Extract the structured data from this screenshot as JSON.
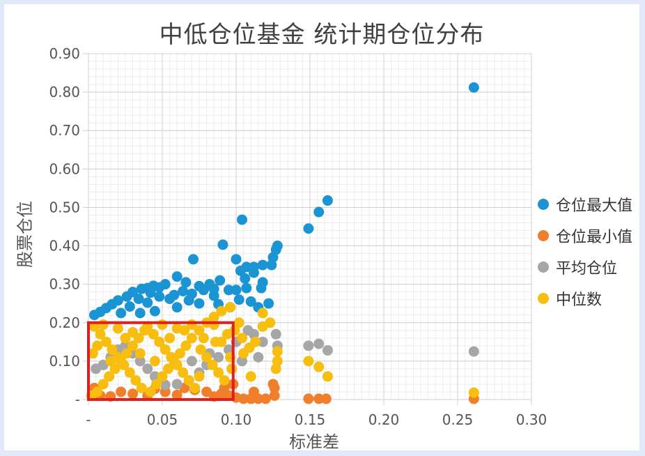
{
  "title": "中低仓位基金  统计期仓位分布",
  "chart_data": {
    "type": "scatter",
    "title": "中低仓位基金  统计期仓位分布",
    "xlabel": "标准差",
    "ylabel": "股票仓位",
    "xlim": [
      0,
      0.3
    ],
    "ylim": [
      0,
      0.9
    ],
    "x_ticks": [
      "-",
      "0.05",
      "0.10",
      "0.15",
      "0.20",
      "0.25",
      "0.30"
    ],
    "y_ticks": [
      "-",
      "0.10",
      "0.20",
      "0.30",
      "0.40",
      "0.50",
      "0.60",
      "0.70",
      "0.80",
      "0.90"
    ],
    "grid": true,
    "legend_position": "right",
    "highlight_box": {
      "x": [
        0,
        0.098
      ],
      "y": [
        0,
        0.2
      ],
      "color": "#e41d1d"
    },
    "series": [
      {
        "name": "仓位最大值",
        "color": "#1a94d2",
        "points": [
          [
            0.261,
            0.812
          ],
          [
            0.162,
            0.518
          ],
          [
            0.156,
            0.488
          ],
          [
            0.149,
            0.445
          ],
          [
            0.128,
            0.4
          ],
          [
            0.127,
            0.39
          ],
          [
            0.125,
            0.37
          ],
          [
            0.124,
            0.35
          ],
          [
            0.118,
            0.35
          ],
          [
            0.112,
            0.345
          ],
          [
            0.107,
            0.345
          ],
          [
            0.103,
            0.335
          ],
          [
            0.106,
            0.315
          ],
          [
            0.112,
            0.33
          ],
          [
            0.118,
            0.305
          ],
          [
            0.117,
            0.29
          ],
          [
            0.107,
            0.29
          ],
          [
            0.1,
            0.285
          ],
          [
            0.104,
            0.468
          ],
          [
            0.091,
            0.403
          ],
          [
            0.1,
            0.365
          ],
          [
            0.071,
            0.365
          ],
          [
            0.089,
            0.31
          ],
          [
            0.082,
            0.3
          ],
          [
            0.075,
            0.295
          ],
          [
            0.066,
            0.305
          ],
          [
            0.06,
            0.32
          ],
          [
            0.052,
            0.3
          ],
          [
            0.048,
            0.292
          ],
          [
            0.044,
            0.296
          ],
          [
            0.04,
            0.29
          ],
          [
            0.036,
            0.288
          ],
          [
            0.03,
            0.28
          ],
          [
            0.026,
            0.268
          ],
          [
            0.02,
            0.258
          ],
          [
            0.016,
            0.248
          ],
          [
            0.012,
            0.238
          ],
          [
            0.008,
            0.228
          ],
          [
            0.004,
            0.22
          ],
          [
            0.028,
            0.242
          ],
          [
            0.04,
            0.252
          ],
          [
            0.055,
            0.262
          ],
          [
            0.07,
            0.275
          ],
          [
            0.085,
            0.27
          ],
          [
            0.095,
            0.285
          ],
          [
            0.102,
            0.26
          ],
          [
            0.11,
            0.255
          ],
          [
            0.122,
            0.25
          ],
          [
            0.115,
            0.24
          ],
          [
            0.06,
            0.24
          ],
          [
            0.045,
            0.23
          ],
          [
            0.035,
            0.225
          ],
          [
            0.022,
            0.225
          ],
          [
            0.075,
            0.25
          ],
          [
            0.088,
            0.248
          ],
          [
            0.096,
            0.24
          ],
          [
            0.064,
            0.282
          ],
          [
            0.058,
            0.272
          ],
          [
            0.048,
            0.268
          ],
          [
            0.034,
            0.262
          ],
          [
            0.078,
            0.285
          ],
          [
            0.068,
            0.258
          ],
          [
            0.085,
            0.288
          ],
          [
            0.042,
            0.278
          ]
        ]
      },
      {
        "name": "仓位最小值",
        "color": "#f07f2b",
        "points": [
          [
            0.261,
            0.002
          ],
          [
            0.161,
            0.002
          ],
          [
            0.156,
            0.002
          ],
          [
            0.149,
            0.002
          ],
          [
            0.126,
            0.01
          ],
          [
            0.126,
            0.03
          ],
          [
            0.125,
            0.04
          ],
          [
            0.12,
            0.002
          ],
          [
            0.115,
            0.002
          ],
          [
            0.11,
            0.002
          ],
          [
            0.105,
            0.002
          ],
          [
            0.1,
            0.005
          ],
          [
            0.095,
            0.01
          ],
          [
            0.09,
            0.015
          ],
          [
            0.085,
            0.008
          ],
          [
            0.08,
            0.02
          ],
          [
            0.072,
            0.025
          ],
          [
            0.065,
            0.03
          ],
          [
            0.06,
            0.012
          ],
          [
            0.052,
            0.02
          ],
          [
            0.045,
            0.028
          ],
          [
            0.04,
            0.01
          ],
          [
            0.03,
            0.015
          ],
          [
            0.022,
            0.02
          ],
          [
            0.015,
            0.008
          ],
          [
            0.008,
            0.01
          ],
          [
            0.004,
            0.03
          ],
          [
            0.098,
            0.04
          ],
          [
            0.112,
            0.02
          ],
          [
            0.092,
            0.03
          ]
        ]
      },
      {
        "name": "平均仓位",
        "color": "#a6a6a6",
        "points": [
          [
            0.261,
            0.125
          ],
          [
            0.162,
            0.128
          ],
          [
            0.156,
            0.145
          ],
          [
            0.149,
            0.14
          ],
          [
            0.128,
            0.14
          ],
          [
            0.127,
            0.17
          ],
          [
            0.118,
            0.15
          ],
          [
            0.115,
            0.11
          ],
          [
            0.112,
            0.17
          ],
          [
            0.108,
            0.18
          ],
          [
            0.1,
            0.15
          ],
          [
            0.095,
            0.13
          ],
          [
            0.088,
            0.11
          ],
          [
            0.08,
            0.09
          ],
          [
            0.075,
            0.07
          ],
          [
            0.068,
            0.05
          ],
          [
            0.06,
            0.04
          ],
          [
            0.052,
            0.038
          ],
          [
            0.045,
            0.06
          ],
          [
            0.04,
            0.08
          ],
          [
            0.035,
            0.1
          ],
          [
            0.03,
            0.12
          ],
          [
            0.025,
            0.14
          ],
          [
            0.02,
            0.13
          ],
          [
            0.015,
            0.11
          ],
          [
            0.01,
            0.09
          ],
          [
            0.005,
            0.08
          ],
          [
            0.07,
            0.1
          ],
          [
            0.082,
            0.12
          ],
          [
            0.104,
            0.1
          ]
        ]
      },
      {
        "name": "中位数",
        "color": "#f7bd0f",
        "points": [
          [
            0.261,
            0.018
          ],
          [
            0.162,
            0.06
          ],
          [
            0.156,
            0.085
          ],
          [
            0.149,
            0.1
          ],
          [
            0.128,
            0.1
          ],
          [
            0.128,
            0.125
          ],
          [
            0.127,
            0.08
          ],
          [
            0.123,
            0.2
          ],
          [
            0.118,
            0.225
          ],
          [
            0.118,
            0.19
          ],
          [
            0.113,
            0.15
          ],
          [
            0.109,
            0.135
          ],
          [
            0.105,
            0.12
          ],
          [
            0.102,
            0.2
          ],
          [
            0.096,
            0.24
          ],
          [
            0.09,
            0.23
          ],
          [
            0.085,
            0.215
          ],
          [
            0.08,
            0.2
          ],
          [
            0.075,
            0.18
          ],
          [
            0.07,
            0.16
          ],
          [
            0.066,
            0.14
          ],
          [
            0.062,
            0.12
          ],
          [
            0.058,
            0.1
          ],
          [
            0.054,
            0.08
          ],
          [
            0.05,
            0.06
          ],
          [
            0.046,
            0.04
          ],
          [
            0.042,
            0.02
          ],
          [
            0.038,
            0.18
          ],
          [
            0.034,
            0.16
          ],
          [
            0.03,
            0.14
          ],
          [
            0.026,
            0.12
          ],
          [
            0.022,
            0.1
          ],
          [
            0.018,
            0.08
          ],
          [
            0.014,
            0.06
          ],
          [
            0.01,
            0.04
          ],
          [
            0.006,
            0.02
          ],
          [
            0.002,
            0.01
          ],
          [
            0.004,
            0.19
          ],
          [
            0.008,
            0.17
          ],
          [
            0.012,
            0.15
          ],
          [
            0.016,
            0.13
          ],
          [
            0.02,
            0.11
          ],
          [
            0.024,
            0.09
          ],
          [
            0.028,
            0.07
          ],
          [
            0.032,
            0.05
          ],
          [
            0.036,
            0.03
          ],
          [
            0.04,
            0.19
          ],
          [
            0.044,
            0.17
          ],
          [
            0.048,
            0.15
          ],
          [
            0.052,
            0.13
          ],
          [
            0.056,
            0.11
          ],
          [
            0.06,
            0.09
          ],
          [
            0.064,
            0.07
          ],
          [
            0.068,
            0.05
          ],
          [
            0.072,
            0.03
          ],
          [
            0.076,
            0.13
          ],
          [
            0.08,
            0.11
          ],
          [
            0.084,
            0.09
          ],
          [
            0.088,
            0.07
          ],
          [
            0.092,
            0.05
          ],
          [
            0.096,
            0.11
          ],
          [
            0.094,
            0.17
          ],
          [
            0.086,
            0.15
          ],
          [
            0.078,
            0.16
          ],
          [
            0.01,
            0.195
          ],
          [
            0.02,
            0.185
          ],
          [
            0.03,
            0.175
          ],
          [
            0.05,
            0.195
          ],
          [
            0.06,
            0.185
          ],
          [
            0.07,
            0.195
          ],
          [
            0.085,
            0.195
          ],
          [
            0.003,
            0.12
          ],
          [
            0.006,
            0.14
          ],
          [
            0.015,
            0.1
          ],
          [
            0.025,
            0.16
          ],
          [
            0.035,
            0.12
          ],
          [
            0.045,
            0.1
          ],
          [
            0.055,
            0.16
          ],
          [
            0.065,
            0.18
          ],
          [
            0.075,
            0.06
          ],
          [
            0.09,
            0.15
          ],
          [
            0.099,
            0.18
          ],
          [
            0.104,
            0.16
          ],
          [
            0.11,
            0.06
          ],
          [
            0.097,
            0.08
          ]
        ]
      }
    ]
  }
}
